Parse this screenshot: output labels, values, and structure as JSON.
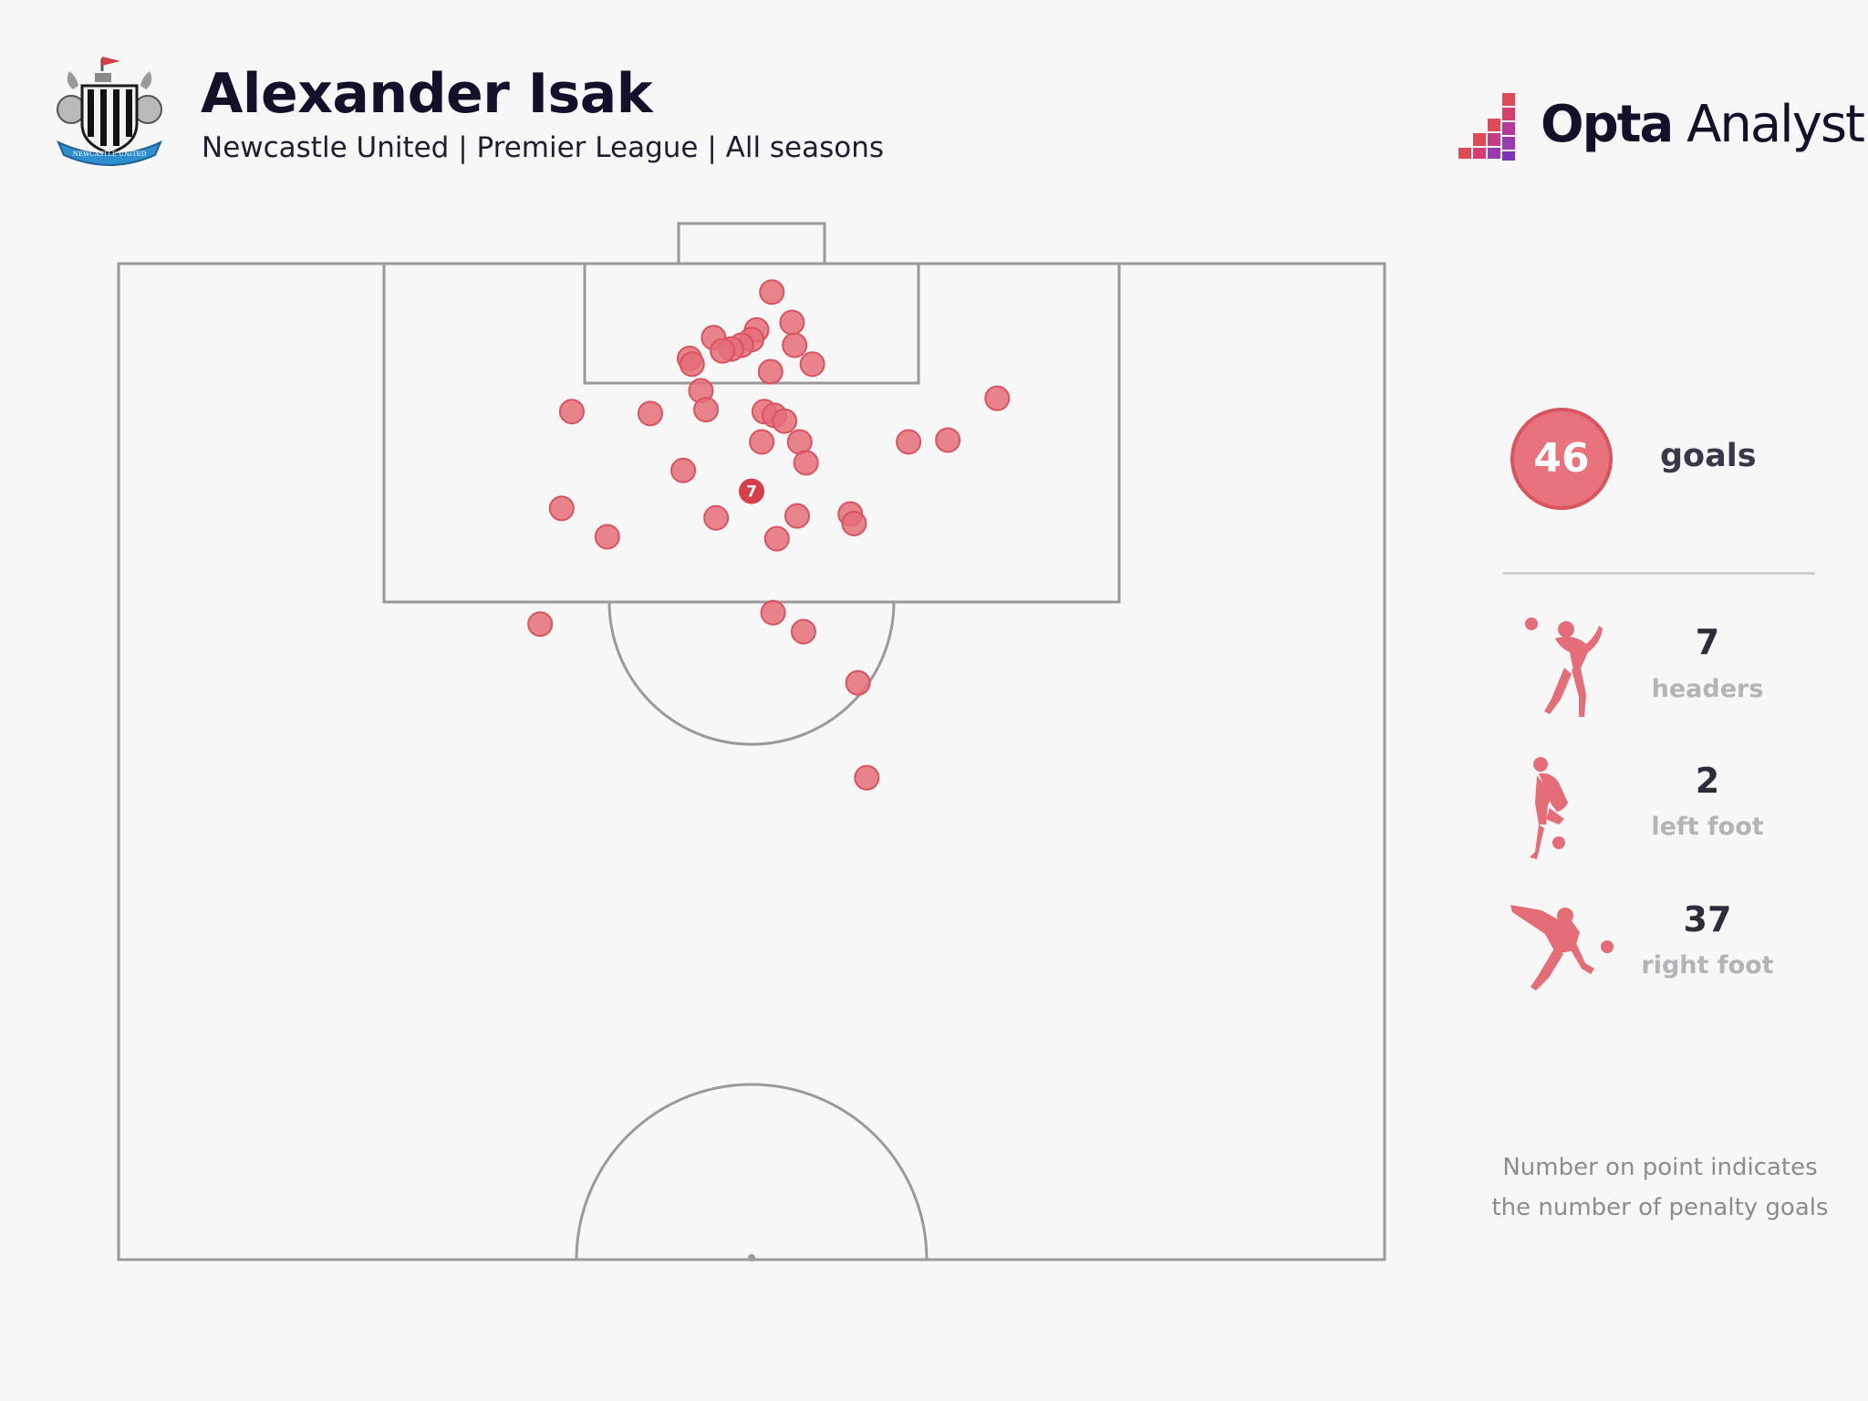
{
  "header": {
    "title": "Alexander Isak",
    "subtitle": "Newcastle United | Premier League | All seasons",
    "crest_icon": "newcastle-united-crest-icon",
    "crest_text": "NEWCASTLE UNITED",
    "brand": "Opta Analyst",
    "brand_part1": "Opta",
    "brand_part2": "Analyst"
  },
  "summary": {
    "total_goals": "46",
    "goals_label": "goals",
    "stats": [
      {
        "value": "7",
        "label": "headers",
        "icon": "header-player-icon"
      },
      {
        "value": "2",
        "label": "left foot",
        "icon": "left-foot-player-icon"
      },
      {
        "value": "37",
        "label": "right foot",
        "icon": "right-foot-player-icon"
      }
    ]
  },
  "footnote": [
    "Number on point indicates",
    "the number of penalty goals"
  ],
  "colors": {
    "goal_marker": "#e56d78",
    "goal_marker_stroke": "#d9545f",
    "penalty_marker": "#d63e4a",
    "pitch_lines": "#9a9a9a",
    "background": "#f7f7f7",
    "title": "#14102a"
  },
  "chart_data": {
    "type": "scatter",
    "description_units": "pitch coordinates: x = 0..100 across pitch width (left to right), y = metres from goal line",
    "title": "Alexander Isak",
    "subtitle": "Newcastle United | Premier League | All seasons",
    "xlim": [
      0,
      100
    ],
    "ylim": [
      0,
      52.5
    ],
    "grid": false,
    "points": [
      {
        "x": 51.6,
        "y": 1.5
      },
      {
        "x": 53.2,
        "y": 3.1
      },
      {
        "x": 50.4,
        "y": 3.5
      },
      {
        "x": 47.0,
        "y": 3.9
      },
      {
        "x": 50.0,
        "y": 4.0
      },
      {
        "x": 49.2,
        "y": 4.3
      },
      {
        "x": 53.4,
        "y": 4.3
      },
      {
        "x": 48.4,
        "y": 4.5
      },
      {
        "x": 47.7,
        "y": 4.6
      },
      {
        "x": 45.1,
        "y": 5.0
      },
      {
        "x": 45.3,
        "y": 5.3
      },
      {
        "x": 54.8,
        "y": 5.3
      },
      {
        "x": 51.5,
        "y": 5.7
      },
      {
        "x": 46.0,
        "y": 6.7
      },
      {
        "x": 69.4,
        "y": 7.1
      },
      {
        "x": 35.8,
        "y": 7.8
      },
      {
        "x": 42.0,
        "y": 7.9
      },
      {
        "x": 46.4,
        "y": 7.7
      },
      {
        "x": 51.0,
        "y": 7.8
      },
      {
        "x": 51.8,
        "y": 8.0
      },
      {
        "x": 52.6,
        "y": 8.3
      },
      {
        "x": 50.8,
        "y": 9.4
      },
      {
        "x": 53.8,
        "y": 9.4
      },
      {
        "x": 62.4,
        "y": 9.4
      },
      {
        "x": 65.5,
        "y": 9.3
      },
      {
        "x": 54.3,
        "y": 10.5
      },
      {
        "x": 44.6,
        "y": 10.9
      },
      {
        "x": 35.0,
        "y": 12.9
      },
      {
        "x": 47.2,
        "y": 13.4
      },
      {
        "x": 53.6,
        "y": 13.3
      },
      {
        "x": 57.8,
        "y": 13.2
      },
      {
        "x": 58.1,
        "y": 13.7
      },
      {
        "x": 38.6,
        "y": 14.4
      },
      {
        "x": 52.0,
        "y": 14.5
      },
      {
        "x": 33.3,
        "y": 19.0
      },
      {
        "x": 51.7,
        "y": 18.4
      },
      {
        "x": 54.1,
        "y": 19.4
      },
      {
        "x": 58.4,
        "y": 22.1
      },
      {
        "x": 59.1,
        "y": 27.1
      }
    ],
    "penalty_spot": {
      "x": 50.0,
      "y": 12.0,
      "penalty_goals": 7
    },
    "totals": {
      "goals": 46,
      "headers": 7,
      "left_foot": 2,
      "right_foot": 37
    }
  }
}
